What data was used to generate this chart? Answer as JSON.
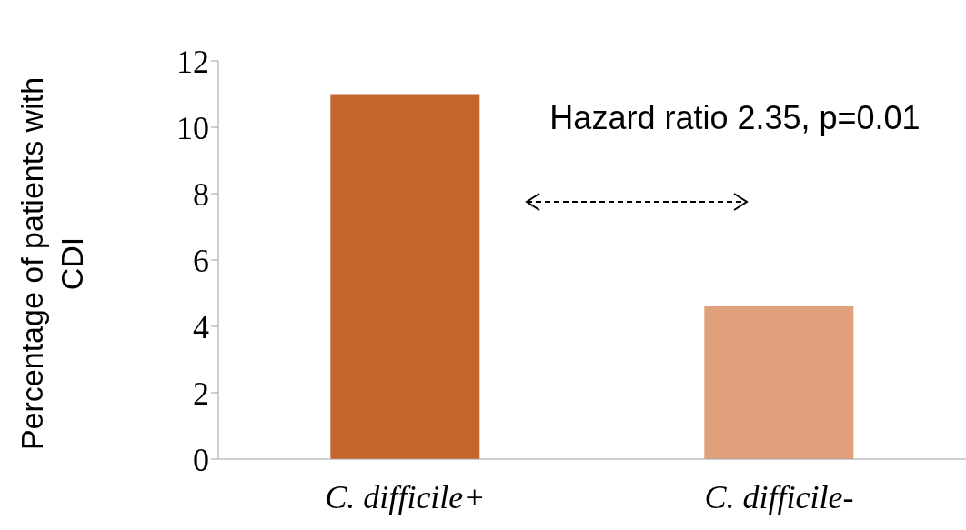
{
  "chart_data": {
    "type": "bar",
    "ylabel": "Percentage of patients with CDI",
    "categories": [
      "C. difficile+",
      "C. difficile-"
    ],
    "values": [
      11.0,
      4.6
    ],
    "colors": [
      "#c4652e",
      "#e0a07c"
    ],
    "ylim": [
      0,
      12
    ],
    "yticks": [
      0,
      2,
      4,
      6,
      8,
      10,
      12
    ],
    "annotations": [
      "Hazard ratio 2.35, p=0.01"
    ]
  }
}
